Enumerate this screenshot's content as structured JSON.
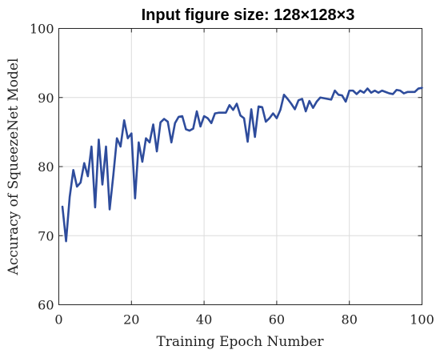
{
  "chart_data": {
    "type": "line",
    "title": "Input figure size: 128×128×3",
    "xlabel": "Training Epoch Number",
    "ylabel": "Accuracy of SqueezeNet Model",
    "xlim": [
      0,
      100
    ],
    "ylim": [
      60,
      100
    ],
    "xticks": [
      0,
      20,
      40,
      60,
      80,
      100
    ],
    "yticks": [
      60,
      70,
      80,
      90,
      100
    ],
    "grid": true,
    "line_color": "#2e4c9c",
    "x": [
      1,
      2,
      3,
      4,
      5,
      6,
      7,
      8,
      9,
      10,
      11,
      12,
      13,
      14,
      15,
      16,
      17,
      18,
      19,
      20,
      21,
      22,
      23,
      24,
      25,
      26,
      27,
      28,
      29,
      30,
      31,
      32,
      33,
      34,
      35,
      36,
      37,
      38,
      39,
      40,
      41,
      42,
      43,
      44,
      45,
      46,
      47,
      48,
      49,
      50,
      51,
      52,
      53,
      54,
      55,
      56,
      57,
      58,
      59,
      60,
      61,
      62,
      63,
      64,
      65,
      66,
      67,
      68,
      69,
      70,
      71,
      72,
      73,
      74,
      75,
      76,
      77,
      78,
      79,
      80,
      81,
      82,
      83,
      84,
      85,
      86,
      87,
      88,
      89,
      90,
      91,
      92,
      93,
      94,
      95,
      96,
      97,
      98,
      99,
      100
    ],
    "series": [
      {
        "values": [
          74.2,
          69.2,
          75.6,
          79.5,
          77.1,
          77.7,
          80.5,
          78.6,
          82.9,
          74.1,
          83.9,
          77.4,
          82.9,
          73.8,
          78.7,
          84.1,
          82.9,
          86.7,
          84.1,
          84.8,
          75.4,
          83.5,
          80.7,
          84.1,
          83.5,
          86.1,
          82.2,
          86.4,
          86.9,
          86.5,
          83.5,
          86.3,
          87.2,
          87.3,
          85.4,
          85.2,
          85.5,
          88.0,
          85.8,
          87.3,
          87.0,
          86.3,
          87.7,
          87.8,
          87.8,
          87.8,
          88.9,
          88.2,
          89.1,
          87.4,
          87.0,
          83.6,
          88.3,
          84.3,
          88.7,
          88.6,
          86.5,
          87.0,
          87.7,
          87.0,
          88.2,
          90.4,
          89.8,
          89.1,
          88.3,
          89.6,
          89.8,
          88.0,
          89.5,
          88.5,
          89.4,
          90.0,
          89.9,
          89.8,
          89.7,
          91.0,
          90.4,
          90.3,
          89.4,
          91.0,
          91.0,
          90.5,
          91.0,
          90.7,
          91.3,
          90.7,
          91.0,
          90.7,
          91.0,
          90.8,
          90.6,
          90.5,
          91.1,
          91.0,
          90.6,
          90.8,
          90.8,
          90.8,
          91.3,
          91.4
        ]
      }
    ]
  }
}
